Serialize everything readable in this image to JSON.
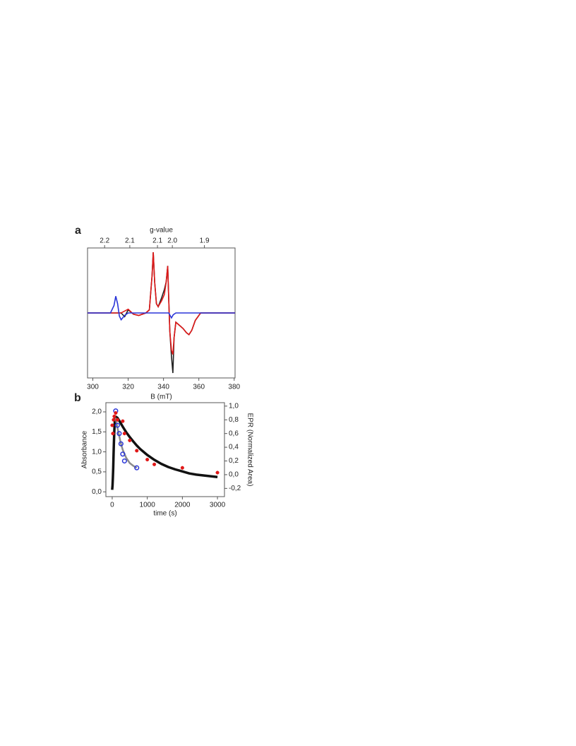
{
  "chart_data": [
    {
      "type": "line",
      "panel_label": "a",
      "x_label": "B (mT)",
      "x2_label": "g-value",
      "xlim": [
        297,
        380.5
      ],
      "xticks": [
        300,
        320,
        340,
        360,
        380
      ],
      "x2ticks": [
        {
          "value": 2.25,
          "label": "2.2"
        },
        {
          "value": 2.15,
          "label": "2.1"
        },
        {
          "value": 2.05,
          "label": "2.1"
        },
        {
          "value": 2.0,
          "label": "2.0"
        },
        {
          "value": 1.9,
          "label": "1.9"
        }
      ],
      "ylim": [
        -1.05,
        1.05
      ],
      "series": [
        {
          "color": "#222222",
          "x": [
            297,
            316,
            318,
            320,
            323,
            326,
            330,
            332,
            333.5,
            334.2,
            335,
            336,
            337,
            339,
            340.5,
            341.5,
            342.4,
            343,
            343.6,
            344.5,
            345.3,
            346,
            347,
            349,
            351,
            353,
            354.4,
            356,
            358,
            361,
            380.5
          ],
          "values": [
            0,
            0,
            -0.06,
            0.05,
            -0.02,
            -0.04,
            0,
            0.05,
            0.6,
            0.98,
            0.5,
            0.15,
            0.1,
            0.25,
            0.38,
            0.5,
            0.76,
            0.2,
            -0.3,
            -0.7,
            -0.97,
            -0.4,
            -0.15,
            -0.2,
            -0.25,
            -0.32,
            -0.35,
            -0.28,
            -0.12,
            0,
            0
          ]
        },
        {
          "color": "#e01818",
          "x": [
            297,
            316,
            320,
            323,
            326,
            330,
            332,
            333.5,
            334.2,
            335,
            336,
            337,
            339,
            340.5,
            341.5,
            342.4,
            343,
            343.6,
            344.5,
            345.3,
            346,
            347,
            349,
            351,
            353,
            354.4,
            356,
            358,
            361,
            380.5
          ],
          "values": [
            0,
            0,
            0.06,
            -0.02,
            -0.04,
            0,
            0.05,
            0.6,
            0.98,
            0.5,
            0.15,
            0.1,
            0.2,
            0.3,
            0.5,
            0.76,
            0.2,
            -0.3,
            -0.6,
            -0.67,
            -0.4,
            -0.15,
            -0.2,
            -0.25,
            -0.32,
            -0.35,
            -0.28,
            -0.12,
            0,
            0
          ]
        },
        {
          "color": "#2a35d8",
          "x": [
            297,
            310,
            312,
            313,
            314,
            315,
            316,
            318,
            320,
            325,
            343,
            344.5,
            345.5,
            347,
            380.5
          ],
          "values": [
            0,
            0,
            0.12,
            0.27,
            0.15,
            -0.05,
            -0.11,
            -0.04,
            0,
            0,
            0,
            -0.08,
            -0.03,
            0,
            0
          ]
        }
      ]
    },
    {
      "type": "scatter",
      "panel_label": "b",
      "x_label": "time (s)",
      "y_label": "Absorbance",
      "y2_label": "EPR (Normalized Area)",
      "xlim": [
        -180,
        3200
      ],
      "xticks": [
        0,
        1000,
        2000,
        3000
      ],
      "ylim": [
        -0.12,
        2.23
      ],
      "yticks": [
        {
          "value": 0.0,
          "label": "0,0"
        },
        {
          "value": 0.5,
          "label": "0,5"
        },
        {
          "value": 1.0,
          "label": "1,0"
        },
        {
          "value": 1.5,
          "label": "1,5"
        },
        {
          "value": 2.0,
          "label": "2,0"
        }
      ],
      "y2lim": [
        -0.32,
        1.05
      ],
      "y2ticks": [
        {
          "value": -0.2,
          "label": "-0,2"
        },
        {
          "value": 0.0,
          "label": "0,0"
        },
        {
          "value": 0.2,
          "label": "0,2"
        },
        {
          "value": 0.4,
          "label": "0,4"
        },
        {
          "value": 0.6,
          "label": "0,6"
        },
        {
          "value": 0.8,
          "label": "0,8"
        },
        {
          "value": 1.0,
          "label": "1,0"
        }
      ],
      "series": [
        {
          "style": "line",
          "color": "#111111",
          "x": [
            0,
            10,
            20,
            30,
            40,
            50,
            60,
            70,
            80,
            100,
            150,
            200,
            300,
            400,
            500,
            600,
            700,
            800,
            1000,
            1200,
            1400,
            1600,
            1800,
            2000,
            2200,
            2400,
            2600,
            2800,
            3000
          ],
          "values": [
            0.05,
            0.15,
            0.35,
            0.6,
            0.95,
            1.25,
            1.5,
            1.7,
            1.82,
            1.88,
            1.85,
            1.78,
            1.63,
            1.49,
            1.37,
            1.26,
            1.16,
            1.07,
            0.92,
            0.8,
            0.7,
            0.62,
            0.56,
            0.51,
            0.46,
            0.43,
            0.41,
            0.39,
            0.37
          ]
        },
        {
          "style": "line",
          "color": "#8c8c8c",
          "x": [
            100,
            150,
            200,
            250,
            300,
            350,
            400,
            500,
            600,
            700
          ],
          "values": [
            1.85,
            1.6,
            1.4,
            1.2,
            1.05,
            0.95,
            0.85,
            0.72,
            0.65,
            0.6
          ]
        },
        {
          "style": "circles",
          "axis": "y2",
          "color": "#2a35d8",
          "x": [
            100,
            150,
            200,
            250,
            300,
            350,
            700
          ],
          "values": [
            0.93,
            0.72,
            0.6,
            0.45,
            0.3,
            0.2,
            0.1
          ]
        },
        {
          "style": "dots",
          "axis": "y2",
          "color": "#e01818",
          "x": [
            0,
            20,
            40,
            60,
            100,
            150,
            300,
            350,
            500,
            700,
            1000,
            1200,
            2000,
            3000
          ],
          "values": [
            0.72,
            0.6,
            0.8,
            0.85,
            0.9,
            0.8,
            0.78,
            0.6,
            0.5,
            0.35,
            0.22,
            0.15,
            0.1,
            0.03
          ]
        }
      ]
    }
  ]
}
